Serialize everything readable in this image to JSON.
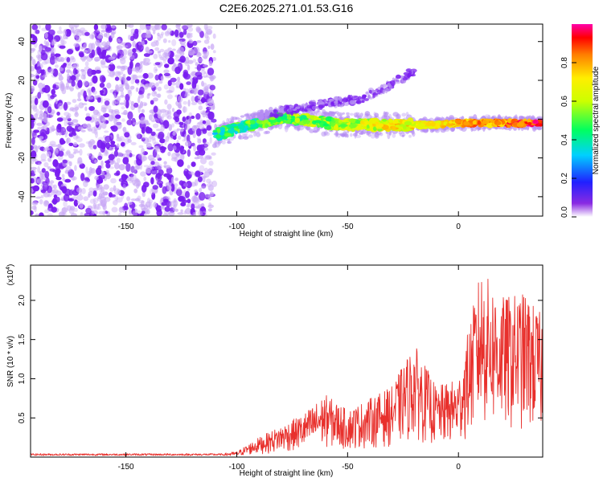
{
  "title": "C2E6.2025.271.01.53.G16",
  "colors": {
    "snr_line": "#e8302c",
    "point": "#7a1ef0",
    "background": "#ffffff"
  },
  "chart_data": [
    {
      "type": "heatmap",
      "name": "spectrogram",
      "xlabel": "Height of straight line (km)",
      "ylabel": "Frequency (Hz)",
      "xlim": [
        -193,
        38
      ],
      "ylim": [
        -50,
        49
      ],
      "xticks": [
        -150,
        -100,
        -50,
        0
      ],
      "xtick_labels": [
        "-150",
        "-100",
        "-50",
        "0"
      ],
      "yticks": [
        -40,
        -20,
        0,
        20,
        40
      ],
      "ytick_labels": [
        "-40",
        "-20",
        "0",
        "20",
        "40"
      ],
      "features": [
        {
          "name": "noise-field",
          "x_range": [
            -193,
            -110
          ],
          "freq_range": [
            -50,
            49
          ],
          "amplitude": 0.15
        },
        {
          "name": "main-ridge",
          "points": [
            [
              -110,
              -8
            ],
            [
              -100,
              -5
            ],
            [
              -90,
              -2
            ],
            [
              -80,
              1
            ],
            [
              -70,
              0
            ],
            [
              -60,
              -2
            ],
            [
              -50,
              -3
            ],
            [
              -40,
              -3
            ],
            [
              -30,
              -3
            ],
            [
              -20,
              -3
            ],
            [
              -10,
              -3
            ],
            [
              0,
              -2
            ],
            [
              10,
              -2
            ],
            [
              20,
              -2
            ],
            [
              30,
              -2
            ],
            [
              38,
              -2
            ]
          ],
          "amplitude_start": 0.4,
          "amplitude_end": 0.9
        },
        {
          "name": "upper-branch",
          "points": [
            [
              -90,
              2
            ],
            [
              -75,
              5
            ],
            [
              -60,
              8
            ],
            [
              -45,
              10
            ],
            [
              -30,
              18
            ],
            [
              -20,
              25
            ]
          ],
          "amplitude": 0.3
        }
      ],
      "colorbar": {
        "label": "Normalized spectral amplitude",
        "range": [
          0,
          1
        ],
        "ticks": [
          0.0,
          0.2,
          0.4,
          0.6,
          0.8
        ],
        "tick_labels": [
          "0.0",
          "0.2",
          "0.4",
          "0.6",
          "0.8"
        ]
      }
    },
    {
      "type": "line",
      "name": "snr",
      "xlabel": "Height of straight line (km)",
      "ylabel": "SNR (10 * v/v)",
      "scale_label": "(x10",
      "scale_exp": "4",
      "scale_close": ")",
      "xlim": [
        -193,
        38
      ],
      "ylim": [
        0,
        2.45
      ],
      "xticks": [
        -150,
        -100,
        -50,
        0
      ],
      "xtick_labels": [
        "-150",
        "-100",
        "-50",
        "0"
      ],
      "yticks": [
        0.5,
        1.0,
        1.5,
        2.0
      ],
      "ytick_labels": [
        "0.5",
        "1.0",
        "1.5",
        "2.0"
      ],
      "envelope": [
        {
          "x": -193,
          "y": 0.05
        },
        {
          "x": -110,
          "y": 0.04
        },
        {
          "x": -100,
          "y": 0.07
        },
        {
          "x": -90,
          "y": 0.25
        },
        {
          "x": -80,
          "y": 0.4
        },
        {
          "x": -70,
          "y": 0.55
        },
        {
          "x": -60,
          "y": 0.8
        },
        {
          "x": -50,
          "y": 0.6
        },
        {
          "x": -40,
          "y": 0.75
        },
        {
          "x": -30,
          "y": 0.9
        },
        {
          "x": -20,
          "y": 1.45
        },
        {
          "x": -10,
          "y": 0.9
        },
        {
          "x": 0,
          "y": 1.0
        },
        {
          "x": 10,
          "y": 2.4
        },
        {
          "x": 20,
          "y": 2.05
        },
        {
          "x": 30,
          "y": 2.1
        },
        {
          "x": 38,
          "y": 1.8
        }
      ]
    }
  ]
}
